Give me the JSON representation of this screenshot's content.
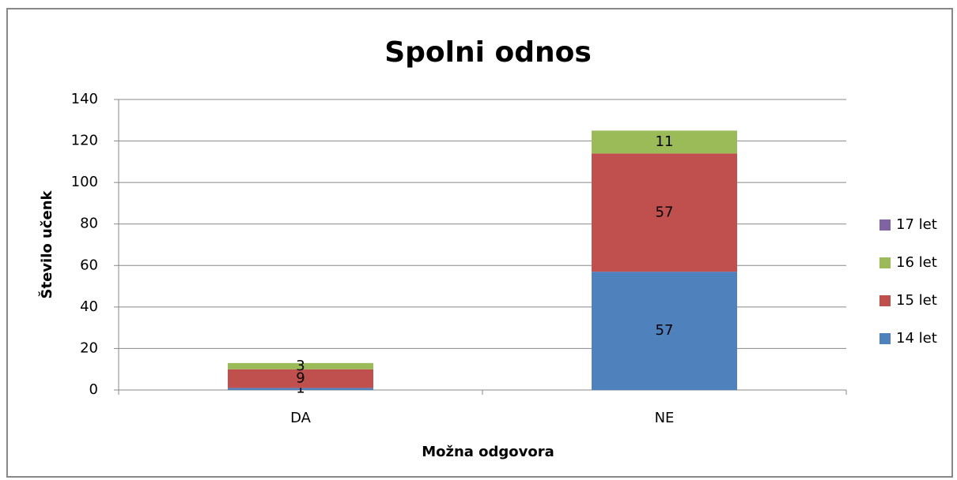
{
  "chart_data": {
    "type": "stacked_bar",
    "title": "Spolni odnos",
    "xlabel": "Možna odgovora",
    "ylabel": "Število učenk",
    "categories": [
      "DA",
      "NE"
    ],
    "series": [
      {
        "name": "14 let",
        "color": "#4f81bd",
        "values": [
          1,
          57
        ]
      },
      {
        "name": "15 let",
        "color": "#c0504d",
        "values": [
          9,
          57
        ]
      },
      {
        "name": "16 let",
        "color": "#9bbb59",
        "values": [
          3,
          11
        ]
      },
      {
        "name": "17 let",
        "color": "#8064a2",
        "values": [
          null,
          null
        ]
      }
    ],
    "ylim": [
      0,
      140
    ],
    "yticks": [
      0,
      20,
      40,
      60,
      80,
      100,
      120,
      140
    ],
    "grid": true,
    "legend": "right"
  }
}
